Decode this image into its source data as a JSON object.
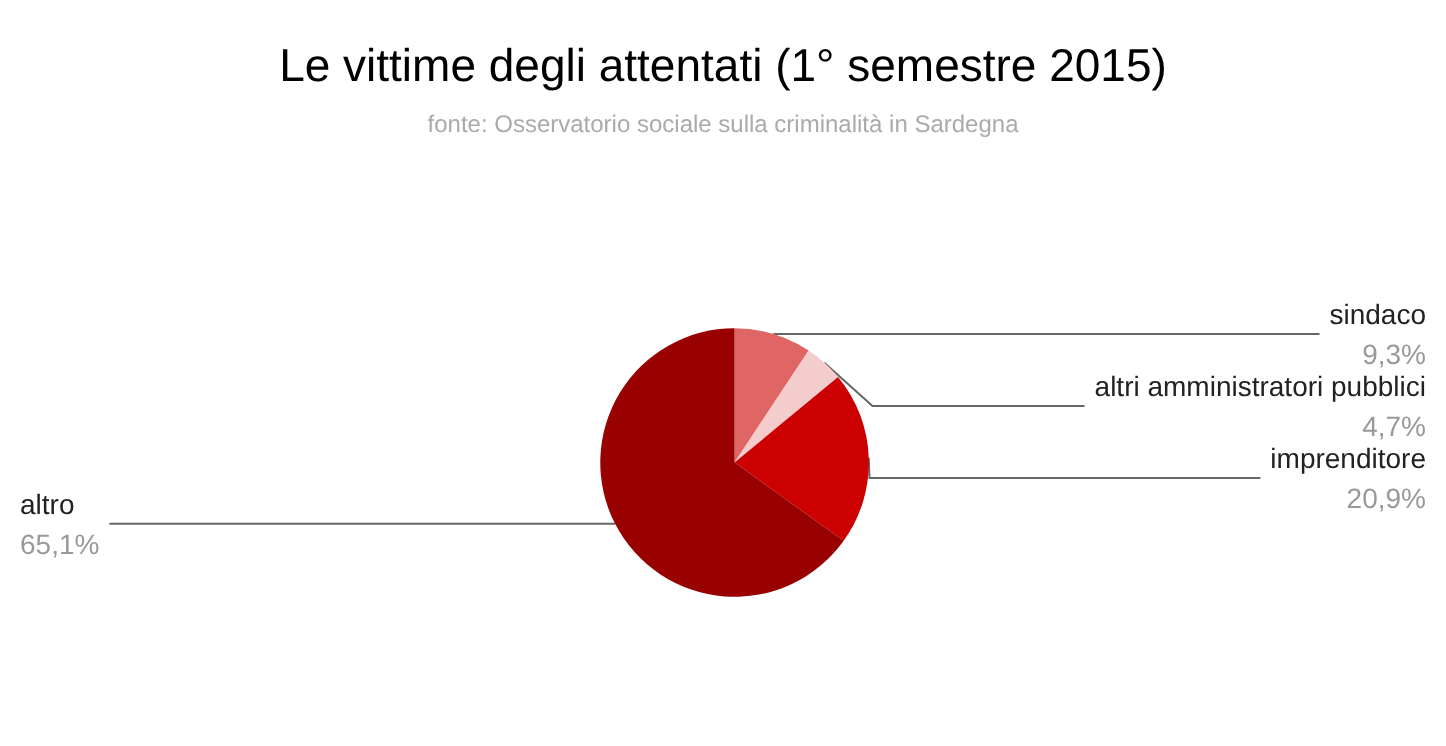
{
  "chart_data": {
    "type": "pie",
    "title": "Le vittime degli attentati (1° semestre 2015)",
    "subtitle": "fonte: Osservatorio sociale sulla criminalità in Sardegna",
    "categories": [
      "sindaco",
      "altri amministratori pubblici",
      "imprenditore",
      "altro"
    ],
    "values": [
      9.3,
      4.7,
      20.9,
      65.1
    ],
    "colors": [
      "#e06666",
      "#f4cccc",
      "#cc0000",
      "#990000"
    ],
    "value_labels": [
      "9,3%",
      "4,7%",
      "20,9%",
      "65,1%"
    ],
    "legend": false
  }
}
